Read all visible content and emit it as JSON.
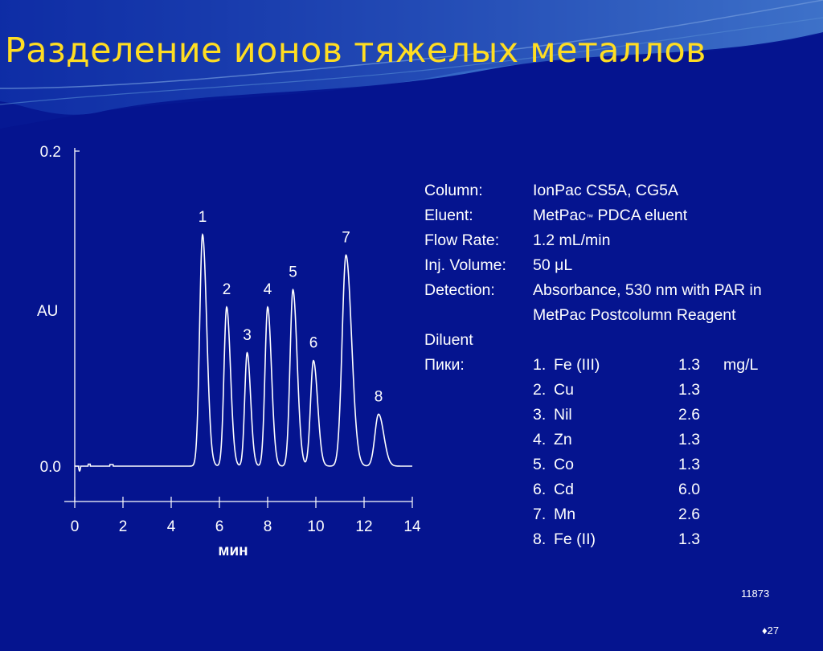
{
  "slide": {
    "title": "Разделение ионов тяжелых металлов",
    "figure_number": "11873",
    "slide_number": "♦27",
    "colors": {
      "background": "#05148f",
      "title": "#ffdd22",
      "text": "#ffffff",
      "trace": "#ffffff"
    }
  },
  "chart_data": {
    "type": "line",
    "xlabel": "мин",
    "ylabel": "AU",
    "xlim": [
      0,
      14
    ],
    "ylim": [
      0,
      0.2
    ],
    "x_ticks": [
      "0",
      "2",
      "4",
      "6",
      "8",
      "10",
      "12",
      "14"
    ],
    "y_ticks": [
      "0.0",
      "0.2"
    ],
    "baseline": 0.0,
    "peaks": [
      {
        "label": "1",
        "time": 5.3,
        "height": 0.147,
        "width": 0.12
      },
      {
        "label": "2",
        "time": 6.3,
        "height": 0.101,
        "width": 0.11
      },
      {
        "label": "3",
        "time": 7.15,
        "height": 0.072,
        "width": 0.1
      },
      {
        "label": "4",
        "time": 8.0,
        "height": 0.101,
        "width": 0.11
      },
      {
        "label": "5",
        "time": 9.05,
        "height": 0.112,
        "width": 0.12
      },
      {
        "label": "6",
        "time": 9.9,
        "height": 0.067,
        "width": 0.12
      },
      {
        "label": "7",
        "time": 11.25,
        "height": 0.134,
        "width": 0.16
      },
      {
        "label": "8",
        "time": 12.6,
        "height": 0.033,
        "width": 0.15
      }
    ]
  },
  "conditions": [
    {
      "key": "Column:",
      "value": "IonPac CS5A, CG5A"
    },
    {
      "key": "Eluent:",
      "value": "MetPac",
      "trademark": "™",
      "value_suffix": " PDCA eluent"
    },
    {
      "key": "Flow Rate:",
      "value": "1.2 mL/min"
    },
    {
      "key": "Inj. Volume:",
      "value": "50 μL"
    },
    {
      "key": "Detection:",
      "value": "Absorbance, 530 nm with PAR in"
    },
    {
      "key": "",
      "value": "MetPac Postcolumn Reagent"
    },
    {
      "key": "Diluent",
      "value": ""
    }
  ],
  "peaks_header": "Пики:",
  "peak_table": [
    {
      "num": "1.",
      "ion": "Fe (III)",
      "conc": "1.3",
      "unit": "mg/L"
    },
    {
      "num": "2.",
      "ion": "Cu",
      "conc": "1.3",
      "unit": ""
    },
    {
      "num": "3.",
      "ion": "Nil",
      "conc": "2.6",
      "unit": ""
    },
    {
      "num": "4.",
      "ion": "Zn",
      "conc": "1.3",
      "unit": ""
    },
    {
      "num": "5.",
      "ion": "Co",
      "conc": "1.3",
      "unit": ""
    },
    {
      "num": "6.",
      "ion": "Cd",
      "conc": "6.0",
      "unit": ""
    },
    {
      "num": "7.",
      "ion": "Mn",
      "conc": "2.6",
      "unit": ""
    },
    {
      "num": "8.",
      "ion": "Fe (II)",
      "conc": "1.3",
      "unit": ""
    }
  ]
}
